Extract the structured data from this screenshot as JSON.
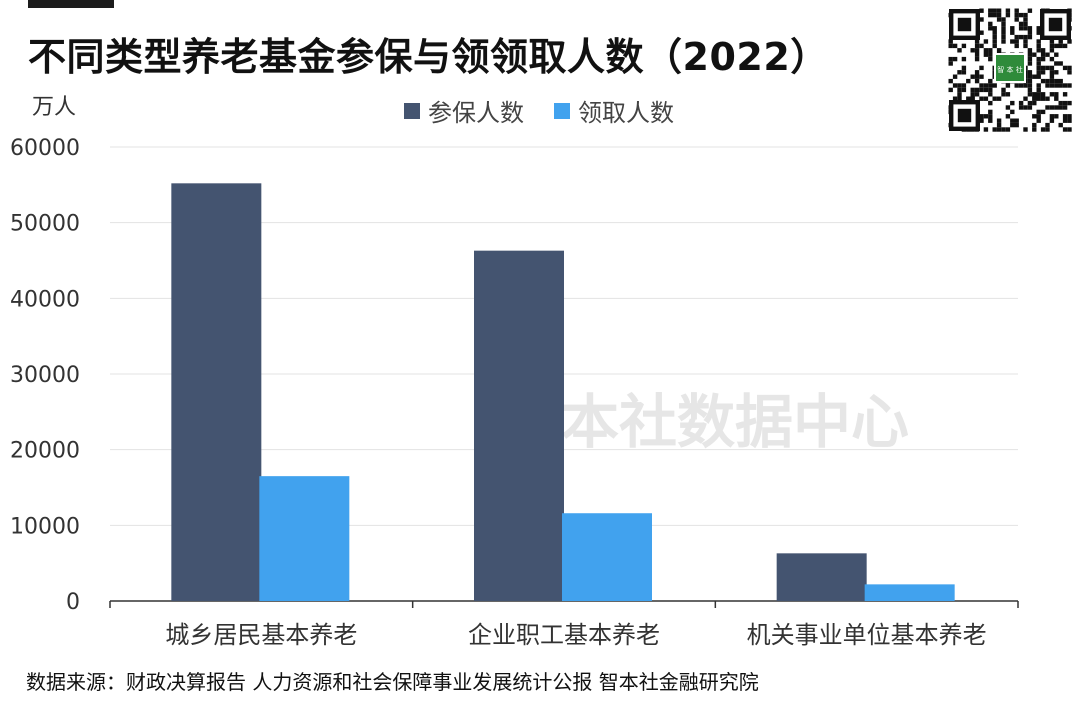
{
  "header": {
    "title": "不同类型养老基金参保与领领取人数（2022）"
  },
  "watermark": {
    "text": "智本社数据中心"
  },
  "qr": {
    "center_text": "智 本 社"
  },
  "footer": {
    "source": "数据来源：财政决算报告 人力资源和社会保障事业发展统计公报 智本社金融研究院"
  },
  "chart_data": {
    "type": "bar",
    "unit": "万人",
    "categories": [
      "城乡居民基本养老",
      "企业职工基本养老",
      "机关事业单位基本养老"
    ],
    "series": [
      {
        "name": "参保人数",
        "color": "#445470",
        "values": [
          55200,
          46300,
          6300
        ]
      },
      {
        "name": "领取人数",
        "color": "#41a2ee",
        "values": [
          16500,
          11600,
          2200
        ]
      }
    ],
    "ylim": [
      0,
      60000
    ],
    "yticks": [
      "0",
      "10000",
      "20000",
      "30000",
      "40000",
      "50000",
      "60000"
    ],
    "grid": true,
    "legend_position": "top-center"
  }
}
